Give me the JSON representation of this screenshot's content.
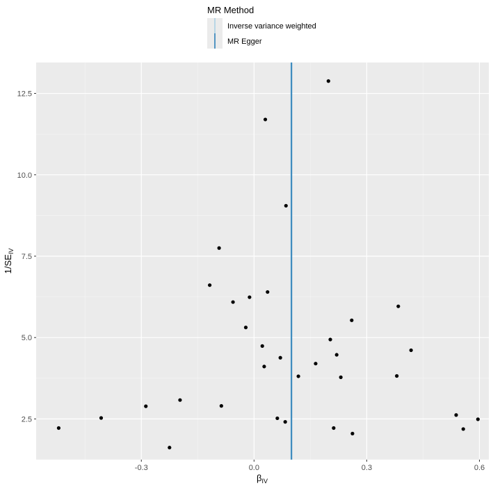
{
  "chart_data": {
    "type": "scatter",
    "legend": {
      "title": "MR Method",
      "placement": "top",
      "entries": [
        {
          "label": "Inverse variance weighted",
          "color": "#a6cee3"
        },
        {
          "label": "MR Egger",
          "color": "#1f78b4"
        }
      ]
    },
    "xlabel_main": "β",
    "xlabel_sub": "IV",
    "ylabel_main": "1/SE",
    "ylabel_sub": "IV",
    "xlim": [
      -0.58,
      0.625
    ],
    "ylim": [
      1.25,
      13.45
    ],
    "x_ticks": [
      -0.3,
      0.0,
      0.3,
      0.6
    ],
    "x_tick_labels": [
      "-0.3",
      "0.0",
      "0.3",
      "0.6"
    ],
    "y_ticks": [
      2.5,
      5.0,
      7.5,
      10.0,
      12.5
    ],
    "y_tick_labels": [
      "2.5",
      "5.0",
      "7.5",
      "10.0",
      "12.5"
    ],
    "grid": true,
    "vlines": [
      {
        "method": "Inverse variance weighted",
        "x": 0.098,
        "color": "#a6cee3"
      },
      {
        "method": "MR Egger",
        "x": 0.1,
        "color": "#1f78b4"
      }
    ],
    "points": [
      {
        "x": -0.52,
        "y": 2.22
      },
      {
        "x": -0.407,
        "y": 2.53
      },
      {
        "x": -0.288,
        "y": 2.89
      },
      {
        "x": -0.225,
        "y": 1.62
      },
      {
        "x": -0.197,
        "y": 3.08
      },
      {
        "x": -0.118,
        "y": 6.61
      },
      {
        "x": -0.093,
        "y": 7.75
      },
      {
        "x": -0.087,
        "y": 2.9
      },
      {
        "x": -0.056,
        "y": 6.09
      },
      {
        "x": -0.022,
        "y": 5.31
      },
      {
        "x": -0.012,
        "y": 6.24
      },
      {
        "x": 0.022,
        "y": 4.74
      },
      {
        "x": 0.027,
        "y": 4.11
      },
      {
        "x": 0.03,
        "y": 11.7
      },
      {
        "x": 0.036,
        "y": 6.4
      },
      {
        "x": 0.062,
        "y": 2.52
      },
      {
        "x": 0.07,
        "y": 4.38
      },
      {
        "x": 0.083,
        "y": 2.41
      },
      {
        "x": 0.085,
        "y": 9.05
      },
      {
        "x": 0.118,
        "y": 3.81
      },
      {
        "x": 0.164,
        "y": 4.2
      },
      {
        "x": 0.198,
        "y": 12.88
      },
      {
        "x": 0.203,
        "y": 4.94
      },
      {
        "x": 0.212,
        "y": 2.22
      },
      {
        "x": 0.22,
        "y": 4.47
      },
      {
        "x": 0.231,
        "y": 3.78
      },
      {
        "x": 0.26,
        "y": 5.53
      },
      {
        "x": 0.262,
        "y": 2.05
      },
      {
        "x": 0.38,
        "y": 3.82
      },
      {
        "x": 0.384,
        "y": 5.96
      },
      {
        "x": 0.418,
        "y": 4.61
      },
      {
        "x": 0.538,
        "y": 2.62
      },
      {
        "x": 0.557,
        "y": 2.19
      },
      {
        "x": 0.596,
        "y": 2.49
      }
    ]
  }
}
